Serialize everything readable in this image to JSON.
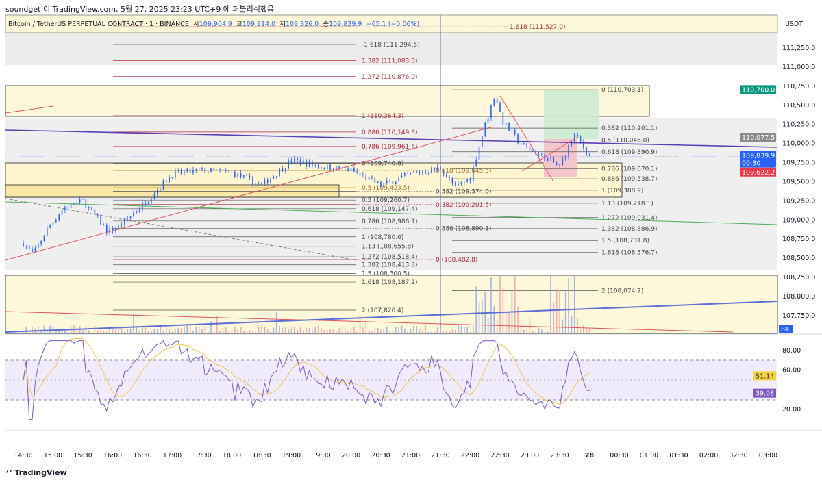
{
  "publish_line": "soundget 이 TradingView.com, 5월 27, 2025 23:23 UTC+9 에 퍼블리쉬했음",
  "legend": {
    "symbol": "Bitcoin / TetherUS PERPETUAL CONTRACT · 1 · BINANCE",
    "open_label": "시",
    "open": "109,904.9",
    "high_label": "고",
    "high": "109,914.0",
    "low_label": "저",
    "low": "109,826.0",
    "close_label": "종",
    "close": "109,839.9",
    "change": "−65.1 (−0.06%)"
  },
  "footer_logo": "TradingView",
  "colors": {
    "up": "#2962ff",
    "down": "#2962ff",
    "grid": "#f0f3fa",
    "rsi": "#7e57c2",
    "rsi_ma": "#f5c342",
    "accent_green": "#089981",
    "accent_red": "#f23645"
  },
  "chart_data": {
    "type": "candlestick",
    "price_axis": {
      "currency": "USDT",
      "ticks": [
        "111,250.0",
        "111,000.0",
        "110,750.0",
        "110,500.0",
        "110,250.0",
        "110,000.0",
        "109,750.0",
        "109,500.0",
        "109,250.0",
        "109,000.0",
        "108,750.0",
        "108,500.0",
        "108,250.0",
        "108,000.0",
        "107,750.0"
      ],
      "tick_values": [
        111250,
        111000,
        110750,
        110500,
        110250,
        110000,
        109750,
        109500,
        109250,
        109000,
        108750,
        108500,
        108250,
        108000,
        107750
      ],
      "price_tags": [
        {
          "text": "110,700.0",
          "value": 110700,
          "color": "#089981"
        },
        {
          "text": "110,077.5",
          "value": 110077.5,
          "color": "#8a8a8a"
        },
        {
          "text": "109,839.9",
          "value": 109839.9,
          "color": "#2962ff",
          "sub": "00:30"
        },
        {
          "text": "109,622.2",
          "value": 109622.2,
          "color": "#f23645"
        }
      ],
      "volume_tag": "84"
    },
    "time_axis": {
      "ticks": [
        "14:30",
        "15:00",
        "15:30",
        "16:00",
        "16:30",
        "17:00",
        "17:30",
        "18:00",
        "18:30",
        "19:00",
        "19:30",
        "20:00",
        "20:30",
        "21:00",
        "21:30",
        "22:00",
        "22:30",
        "23:00",
        "23:30",
        "28",
        "00:30",
        "01:00",
        "01:30",
        "02:00",
        "02:30",
        "03:00"
      ]
    },
    "price_path_minutes_from_1430": [
      0,
      10,
      25,
      40,
      60,
      85,
      95,
      120,
      150,
      180,
      210,
      240,
      270,
      300,
      330,
      360,
      390,
      420,
      435,
      450,
      465,
      475,
      482,
      500,
      520,
      540,
      555,
      570
    ],
    "price_path_values": [
      108700,
      108550,
      108900,
      109150,
      109250,
      108850,
      108900,
      109200,
      109600,
      109650,
      109620,
      109450,
      109780,
      109700,
      109650,
      109450,
      109600,
      109680,
      109420,
      109550,
      110250,
      110650,
      110300,
      110000,
      109850,
      109700,
      110120,
      109840
    ],
    "fib_left": [
      {
        "label": "1.618 (111,527.0)",
        "price": 111527.0,
        "tone": "red"
      },
      {
        "label": "-1.618 (111,294.5)",
        "price": 111294.5,
        "tone": "grey"
      },
      {
        "label": "1.382 (111,083.0)",
        "price": 111083.0,
        "tone": "red"
      },
      {
        "label": "1.272 (110,876.0)",
        "price": 110876.0,
        "tone": "red"
      },
      {
        "label": "1 (110,364.3)",
        "price": 110364.3,
        "tone": "red"
      },
      {
        "label": "0.886 (110,149.8)",
        "price": 110149.8,
        "tone": "red"
      },
      {
        "label": "0.786 (109,961.6)",
        "price": 109961.6,
        "tone": "red"
      },
      {
        "label": "0 (109,740.8)",
        "price": 109740.8,
        "tone": "grey"
      },
      {
        "label": "0.618 (109,645.5)",
        "price": 109645.5,
        "tone": "orange"
      },
      {
        "label": "0.5 (109,423.5)",
        "price": 109423.5,
        "tone": "orange"
      },
      {
        "label": "0.382 (109,374.0)",
        "price": 109374.0,
        "tone": "grey"
      },
      {
        "label": "0.5 (109,260.7)",
        "price": 109260.7,
        "tone": "grey"
      },
      {
        "label": "0.382 (109,201.5)",
        "price": 109201.5,
        "tone": "red"
      },
      {
        "label": "0.618 (109,147.4)",
        "price": 109147.4,
        "tone": "grey"
      },
      {
        "label": "0.786 (108,986.1)",
        "price": 108986.1,
        "tone": "grey"
      },
      {
        "label": "0.886 (108,890.1)",
        "price": 108890.1,
        "tone": "grey"
      },
      {
        "label": "1 (108,780.6)",
        "price": 108780.6,
        "tone": "grey"
      },
      {
        "label": "1.13 (108,655.8)",
        "price": 108655.8,
        "tone": "grey"
      },
      {
        "label": "1.272 (108,518.4)",
        "price": 108518.4,
        "tone": "grey"
      },
      {
        "label": "0 (108,482.8)",
        "price": 108482.8,
        "tone": "red"
      },
      {
        "label": "1.382 (108,413.8)",
        "price": 108413.8,
        "tone": "grey"
      },
      {
        "label": "1.5 (108,300.5)",
        "price": 108300.5,
        "tone": "grey"
      },
      {
        "label": "1.618 (108,187.2)",
        "price": 108187.2,
        "tone": "grey"
      },
      {
        "label": "2 (107,820.4)",
        "price": 107820.4,
        "tone": "grey"
      }
    ],
    "fib_right": [
      {
        "label": "0 (110,703.1)",
        "price": 110703.1
      },
      {
        "label": "0.382 (110,201.1)",
        "price": 110201.1
      },
      {
        "label": "0.5 (110,046.0)",
        "price": 110046.0
      },
      {
        "label": "0.618 (109,890.9)",
        "price": 109890.9
      },
      {
        "label": "0.786 (109,670.1)",
        "price": 109670.1
      },
      {
        "label": "0.886 (109,538.7)",
        "price": 109538.7
      },
      {
        "label": "1 (109,388.9)",
        "price": 109388.9
      },
      {
        "label": "1.13 (109,218.1)",
        "price": 109218.1
      },
      {
        "label": "1.272 (109,031.4)",
        "price": 109031.4
      },
      {
        "label": "1.382 (108,886.9)",
        "price": 108886.9
      },
      {
        "label": "1.5 (108,731.8)",
        "price": 108731.8
      },
      {
        "label": "1.618 (108,576.7)",
        "price": 108576.7
      },
      {
        "label": "2 (108,074.7)",
        "price": 108074.7
      }
    ],
    "rsi": {
      "ticks": [
        "80.00",
        "60.00",
        "20.00"
      ],
      "tick_values": [
        80,
        60,
        20
      ],
      "bands": [
        30,
        70
      ],
      "value_tag": "39.08",
      "ma_tag": "51.14",
      "value": 39.08,
      "ma": 51.14
    }
  }
}
